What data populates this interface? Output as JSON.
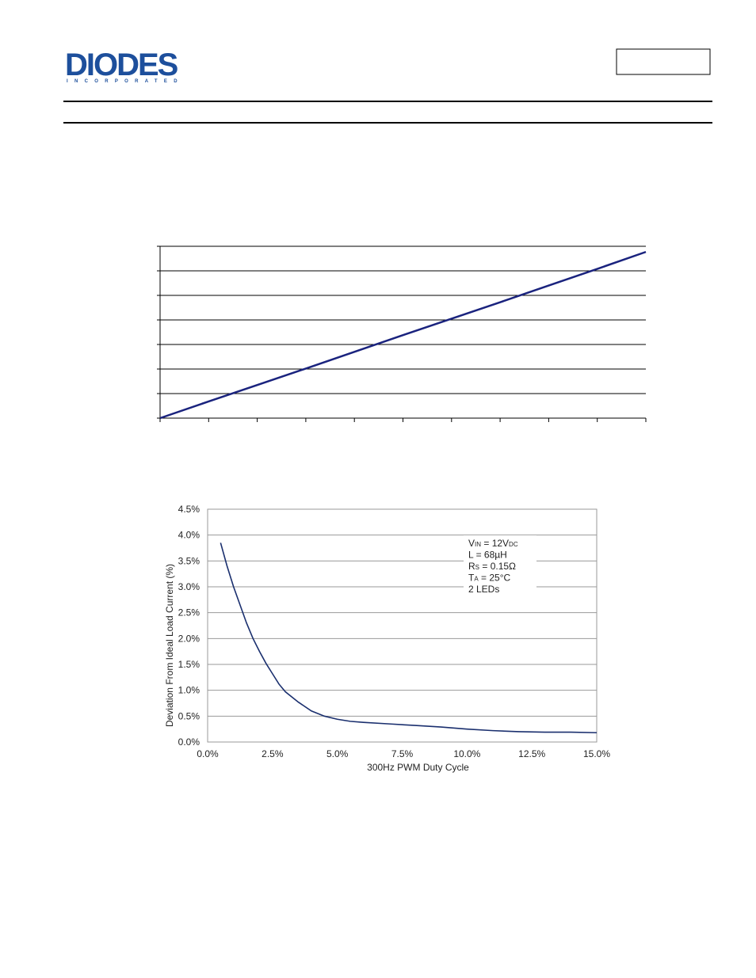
{
  "logo": {
    "name": "DIODES",
    "sub": "INCORPORATED"
  },
  "chart_data": [
    {
      "type": "line",
      "x": [
        0,
        1,
        2,
        3,
        4,
        5,
        6,
        7,
        8,
        9,
        10
      ],
      "series": [
        {
          "color": "#1a237e",
          "values": [
            0,
            0.68,
            1.35,
            2.02,
            2.7,
            3.38,
            4.05,
            4.72,
            5.4,
            6.08,
            6.77
          ]
        }
      ],
      "xlim": [
        0,
        10
      ],
      "xticks": [
        0,
        1,
        2,
        3,
        4,
        5,
        6,
        7,
        8,
        9,
        10
      ],
      "ylim": [
        0,
        7
      ],
      "yticks": [
        0,
        1,
        2,
        3,
        4,
        5,
        6,
        7
      ],
      "grid": true
    },
    {
      "type": "line",
      "x_label": "300Hz PWM Duty Cycle",
      "y_label": "Deviation From Ideal Load Current (%)",
      "annotation": [
        [
          "V",
          "IN",
          " = 12V",
          "DC"
        ],
        [
          "L = 68µH"
        ],
        [
          "R",
          "S",
          " = 0.15Ω"
        ],
        [
          "T",
          "A",
          " = 25°C"
        ],
        [
          "2 LEDs"
        ]
      ],
      "x": [
        0.5,
        0.75,
        1,
        1.25,
        1.5,
        1.75,
        2,
        2.25,
        2.5,
        2.75,
        3,
        3.5,
        4,
        4.5,
        5,
        5.5,
        6,
        7,
        8,
        9,
        10,
        11,
        12,
        13,
        14,
        15
      ],
      "series": [
        {
          "color": "#1a2f6e",
          "values": [
            3.85,
            3.4,
            3.0,
            2.65,
            2.3,
            2.0,
            1.75,
            1.52,
            1.32,
            1.12,
            0.97,
            0.77,
            0.6,
            0.5,
            0.44,
            0.4,
            0.38,
            0.35,
            0.32,
            0.29,
            0.25,
            0.22,
            0.2,
            0.19,
            0.19,
            0.18
          ]
        }
      ],
      "xlim": [
        0,
        15
      ],
      "xticks": [
        {
          "value": 0,
          "label": "0.0%"
        },
        {
          "value": 2.5,
          "label": "2.5%"
        },
        {
          "value": 5,
          "label": "5.0%"
        },
        {
          "value": 7.5,
          "label": "7.5%"
        },
        {
          "value": 10,
          "label": "10.0%"
        },
        {
          "value": 12.5,
          "label": "12.5%"
        },
        {
          "value": 15,
          "label": "15.0%"
        }
      ],
      "ylim": [
        0,
        4.5
      ],
      "yticks": [
        {
          "value": 0,
          "label": "0.0%"
        },
        {
          "value": 0.5,
          "label": "0.5%"
        },
        {
          "value": 1,
          "label": "1.0%"
        },
        {
          "value": 1.5,
          "label": "1.5%"
        },
        {
          "value": 2,
          "label": "2.0%"
        },
        {
          "value": 2.5,
          "label": "2.5%"
        },
        {
          "value": 3,
          "label": "3.0%"
        },
        {
          "value": 3.5,
          "label": "3.5%"
        },
        {
          "value": 4,
          "label": "4.0%"
        },
        {
          "value": 4.5,
          "label": "4.5%"
        }
      ],
      "grid": true
    }
  ]
}
